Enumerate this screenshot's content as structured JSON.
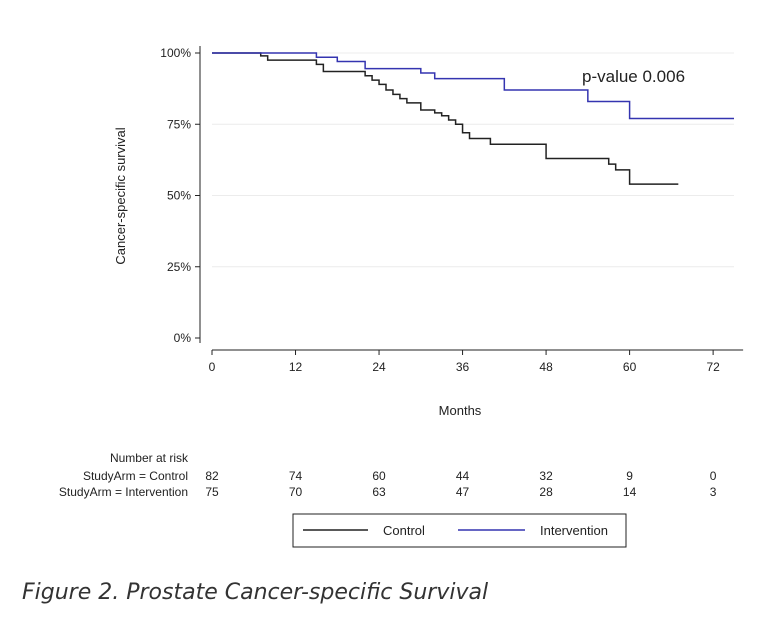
{
  "chart_data": {
    "type": "line",
    "title": "",
    "xlabel": "Months",
    "ylabel": "Cancer-specific survival",
    "xlim": [
      0,
      75
    ],
    "ylim": [
      0,
      100
    ],
    "x_ticks": [
      0,
      12,
      24,
      36,
      48,
      60,
      72
    ],
    "y_ticks": [
      {
        "value": 0,
        "label": "0%"
      },
      {
        "value": 25,
        "label": "25%"
      },
      {
        "value": 50,
        "label": "50%"
      },
      {
        "value": 75,
        "label": "75%"
      },
      {
        "value": 100,
        "label": "100%"
      }
    ],
    "grid": true,
    "annotation": "p-value 0.006",
    "series": [
      {
        "name": "Control",
        "color": "#222222",
        "step": true,
        "x": [
          0,
          7,
          8,
          15,
          16,
          22,
          23,
          24,
          25,
          26,
          27,
          28,
          30,
          32,
          33,
          34,
          35,
          36,
          37,
          40,
          48,
          57,
          58,
          60,
          67
        ],
        "y": [
          100,
          99,
          97.5,
          96,
          93.5,
          92,
          90.5,
          89,
          87,
          85.5,
          84,
          82.5,
          80,
          79,
          78,
          76.5,
          75,
          72,
          70,
          68,
          63,
          61,
          59,
          54,
          54
        ]
      },
      {
        "name": "Intervention",
        "color": "#3434b0",
        "step": true,
        "x": [
          0,
          15,
          18,
          22,
          30,
          32,
          42,
          54,
          60,
          75
        ],
        "y": [
          100,
          98.5,
          97,
          94.5,
          93,
          91,
          87,
          83,
          77,
          77
        ]
      }
    ],
    "legend": {
      "position": "bottom",
      "entries": [
        "Control",
        "Intervention"
      ]
    }
  },
  "risk_table": {
    "header": "Number at risk",
    "rows": [
      {
        "label": "StudyArm = Control",
        "values": [
          "82",
          "74",
          "60",
          "44",
          "32",
          "9",
          "0"
        ]
      },
      {
        "label": "StudyArm = Intervention",
        "values": [
          "75",
          "70",
          "63",
          "47",
          "28",
          "14",
          "3"
        ]
      }
    ]
  },
  "caption": "Figure 2. Prostate Cancer-specific Survival"
}
